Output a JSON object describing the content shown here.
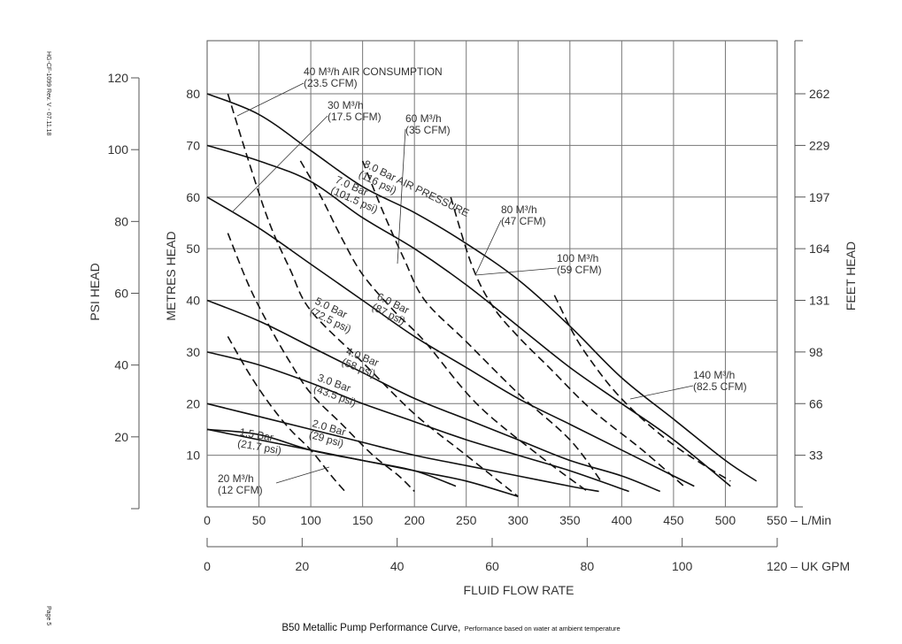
{
  "doc_id": "HG-CF-1099 Rev. V - 07.11.18",
  "page_label": "Page 5",
  "caption": {
    "main": "B50 Metallic Pump Performance Curve,",
    "note": "Performance based on water at ambient temperature"
  },
  "chart_data": {
    "type": "line",
    "xlabel": "FLUID FLOW RATE",
    "x_axis": {
      "unit": "L/Min",
      "range": [
        0,
        550
      ],
      "ticks": [
        0,
        50,
        100,
        150,
        200,
        250,
        300,
        350,
        400,
        450,
        500,
        550
      ],
      "end_label": "550 – L/Min"
    },
    "x2_axis": {
      "unit": "UK GPM",
      "range": [
        0,
        120
      ],
      "ticks": [
        0,
        20,
        40,
        60,
        80,
        100,
        120
      ],
      "end_label": "120 – UK GPM"
    },
    "y_axis": {
      "label": "METRES HEAD",
      "range": [
        0,
        80
      ],
      "ticks": [
        10,
        20,
        30,
        40,
        50,
        60,
        70,
        80
      ]
    },
    "psi_axis": {
      "label": "PSI HEAD",
      "range": [
        0,
        120
      ],
      "ticks": [
        20,
        40,
        60,
        80,
        100,
        120
      ]
    },
    "feet_axis": {
      "label": "FEET HEAD",
      "ticks": [
        33,
        66,
        98,
        131,
        164,
        197,
        229,
        262
      ]
    },
    "grid": true,
    "series": [
      {
        "name": "8.0 Bar AIR PRESSURE (116 psi)",
        "label_lines": [
          "8.0 Bar AIR PRESSURE",
          "(116 psi)"
        ],
        "style": "solid",
        "x": [
          0,
          50,
          100,
          150,
          200,
          250,
          300,
          350,
          400,
          450,
          500,
          530
        ],
        "y": [
          80,
          76,
          69,
          62,
          57,
          51,
          44,
          35,
          25,
          17,
          9,
          5
        ]
      },
      {
        "name": "7.0 Bar (101.5 psi)",
        "label_lines": [
          "7.0 Bar",
          "(101.5 psi)"
        ],
        "style": "solid",
        "x": [
          0,
          50,
          100,
          150,
          200,
          250,
          300,
          350,
          400,
          450,
          505
        ],
        "y": [
          70,
          67,
          63,
          56,
          50,
          43,
          35,
          27,
          20,
          13,
          4
        ]
      },
      {
        "name": "6.0 Bar (87 psi)",
        "label_lines": [
          "6.0 Bar",
          "(87 psi)"
        ],
        "style": "solid",
        "x": [
          0,
          50,
          100,
          150,
          200,
          250,
          300,
          350,
          400,
          450,
          470
        ],
        "y": [
          60,
          54,
          47,
          40,
          33,
          27,
          21,
          16,
          11,
          6,
          4
        ]
      },
      {
        "name": "5.0 Bar (72.5 psi)",
        "label_lines": [
          "5.0 Bar",
          "(72.5 psi)"
        ],
        "style": "solid",
        "x": [
          0,
          50,
          100,
          150,
          200,
          250,
          300,
          350,
          400,
          437
        ],
        "y": [
          40,
          36,
          31,
          26,
          21,
          17,
          13,
          9,
          6,
          3
        ]
      },
      {
        "name": "4.0 Bar (58 psi)",
        "label_lines": [
          "4.0 Bar",
          "(58 psi)"
        ],
        "style": "solid",
        "x": [
          0,
          50,
          100,
          150,
          200,
          250,
          300,
          350,
          407
        ],
        "y": [
          30,
          27.5,
          24,
          20,
          16.5,
          13,
          10,
          7,
          3
        ]
      },
      {
        "name": "3.0 Bar (43.5 psi)",
        "label_lines": [
          "3.0 Bar",
          "(43.5 psi)"
        ],
        "style": "solid",
        "x": [
          0,
          50,
          100,
          150,
          200,
          250,
          300,
          350,
          378
        ],
        "y": [
          20,
          17.5,
          15,
          12.5,
          10,
          8,
          6,
          4,
          3
        ]
      },
      {
        "name": "2.0 Bar (29 psi)",
        "label_lines": [
          "2.0 Bar",
          "(29 psi)"
        ],
        "style": "solid",
        "x": [
          0,
          50,
          100,
          150,
          200,
          250,
          300
        ],
        "y": [
          15,
          13,
          11,
          9,
          7,
          5,
          2
        ]
      },
      {
        "name": "1.5 Bar (21.7 psi)",
        "label_lines": [
          "1.5 Bar",
          "(21.7 psi)"
        ],
        "style": "solid",
        "x": [
          0,
          50,
          100,
          150,
          200,
          240
        ],
        "y": [
          15,
          14,
          11,
          9,
          7,
          4
        ]
      },
      {
        "name": "20 M3/h (12 CFM)",
        "label_lines": [
          "20 M³/h",
          "(12 CFM)"
        ],
        "style": "dashed",
        "x": [
          20,
          40,
          60,
          80,
          100,
          120,
          133
        ],
        "y": [
          33,
          26,
          20,
          15,
          11,
          6,
          3
        ]
      },
      {
        "name": "30 M3/h (17.5 CFM)",
        "label_lines": [
          "30 M³/h",
          "(17.5 CFM)"
        ],
        "style": "dashed",
        "x": [
          20,
          40,
          60,
          80,
          100,
          130,
          160,
          185,
          200
        ],
        "y": [
          53,
          43,
          35,
          28,
          22,
          16,
          10,
          6,
          3
        ]
      },
      {
        "name": "40 M3/h AIR CONSUMPTION (23.5 CFM)",
        "label_lines": [
          "40 M³/h AIR CONSUMPTION",
          "(23.5 CFM)"
        ],
        "style": "dashed",
        "x": [
          20,
          40,
          60,
          80,
          100,
          150,
          200,
          250,
          300
        ],
        "y": [
          80,
          67,
          55,
          46,
          38,
          28,
          18,
          10,
          2
        ]
      },
      {
        "name": "60 M3/h (35 CFM)",
        "label_lines": [
          "60 M³/h",
          "(35 CFM)"
        ],
        "style": "dashed",
        "x": [
          90,
          110,
          130,
          150,
          180,
          210,
          260,
          320,
          367
        ],
        "y": [
          67,
          60,
          52,
          45,
          38,
          32,
          20,
          10,
          3
        ]
      },
      {
        "name": "80 M3/h (47 CFM)",
        "label_lines": [
          "80 M³/h",
          "(47 CFM)"
        ],
        "style": "dashed",
        "x": [
          150,
          170,
          190,
          210,
          250,
          300,
          350,
          380
        ],
        "y": [
          67,
          57,
          48,
          40,
          32,
          22,
          13,
          5
        ]
      },
      {
        "name": "100 M3/h (59 CFM)",
        "label_lines": [
          "100 M³/h",
          "(59 CFM)"
        ],
        "style": "dashed",
        "x": [
          235,
          255,
          275,
          300,
          330,
          370,
          420,
          460
        ],
        "y": [
          60,
          47,
          39,
          33,
          27,
          19,
          11,
          4
        ]
      },
      {
        "name": "140 M3/h (82.5 CFM)",
        "label_lines": [
          "140 M³/h",
          "(82.5 CFM)"
        ],
        "style": "dashed",
        "x": [
          335,
          355,
          375,
          395,
          420,
          450,
          480,
          505
        ],
        "y": [
          41,
          33,
          27,
          22,
          17,
          12,
          8,
          5
        ]
      }
    ]
  }
}
